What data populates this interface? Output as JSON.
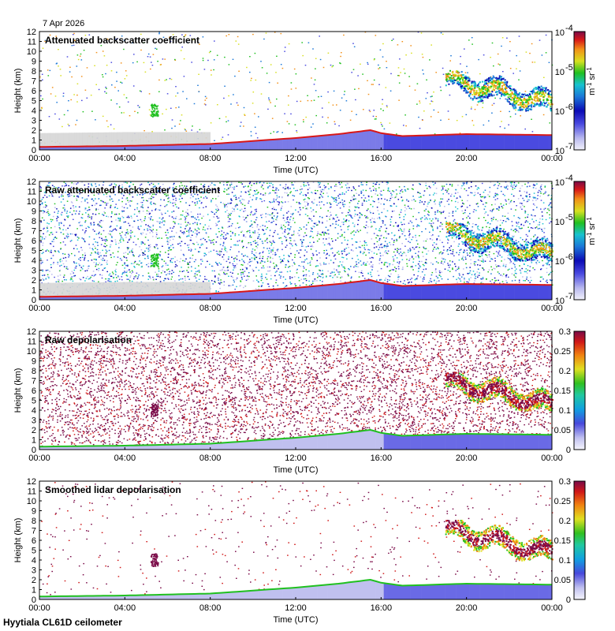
{
  "header": {
    "date": "7 Apr 2026"
  },
  "footer": {
    "site": "Hyytiala CL61D ceilometer"
  },
  "chart_data": [
    {
      "type": "heatmap",
      "title": "Attenuated backscatter coefficient",
      "xlabel": "Time (UTC)",
      "ylabel": "Height (km)",
      "xticks": [
        "00:00",
        "04:00",
        "08:00",
        "12:00",
        "16:00",
        "20:00",
        "00:00"
      ],
      "yticks": [
        "0",
        "1",
        "2",
        "3",
        "4",
        "5",
        "6",
        "7",
        "8",
        "9",
        "10",
        "11",
        "12"
      ],
      "ylim": [
        0,
        12
      ],
      "xlim_hours": [
        0,
        24
      ],
      "colorbar": {
        "scale": "log",
        "ticks": [
          {
            "base": "10",
            "exp": "-4"
          },
          {
            "base": "10",
            "exp": "-5"
          },
          {
            "base": "10",
            "exp": "-6"
          },
          {
            "base": "10",
            "exp": "-7"
          }
        ],
        "unit": {
          "m_exp": "-1",
          "sr_exp": "-1"
        },
        "colormap": "viridis-like rainbow"
      },
      "features": {
        "boundary_layer_top_km": [
          [
            0,
            0.3
          ],
          [
            4,
            0.4
          ],
          [
            6,
            0.5
          ],
          [
            8,
            0.6
          ],
          [
            10,
            0.9
          ],
          [
            12,
            1.2
          ],
          [
            14,
            1.6
          ],
          [
            15.5,
            2.0
          ],
          [
            16,
            1.7
          ],
          [
            17,
            1.4
          ],
          [
            20,
            1.6
          ],
          [
            24,
            1.5
          ]
        ],
        "upper_cloud": {
          "t_start_h": 19.0,
          "t_end_h": 24.0,
          "top_km": 7.8,
          "base_km": 4.0
        }
      }
    },
    {
      "type": "heatmap",
      "title": "Raw attenuated backscatter coefficient",
      "xlabel": "Time (UTC)",
      "ylabel": "Height (km)",
      "xticks": [
        "00:00",
        "04:00",
        "08:00",
        "12:00",
        "16:00",
        "20:00",
        "00:00"
      ],
      "yticks": [
        "0",
        "1",
        "2",
        "3",
        "4",
        "5",
        "6",
        "7",
        "8",
        "9",
        "10",
        "11",
        "12"
      ],
      "ylim": [
        0,
        12
      ],
      "xlim_hours": [
        0,
        24
      ],
      "colorbar": {
        "scale": "log",
        "ticks": [
          {
            "base": "10",
            "exp": "-4"
          },
          {
            "base": "10",
            "exp": "-5"
          },
          {
            "base": "10",
            "exp": "-6"
          },
          {
            "base": "10",
            "exp": "-7"
          }
        ],
        "unit": {
          "m_exp": "-1",
          "sr_exp": "-1"
        },
        "colormap": "viridis-like rainbow"
      },
      "features": {
        "noise": "dense",
        "upper_cloud": {
          "t_start_h": 19.0,
          "t_end_h": 24.0,
          "top_km": 7.6,
          "base_km": 4.0
        }
      }
    },
    {
      "type": "heatmap",
      "title": "Raw depolarisation",
      "xlabel": "Time (UTC)",
      "ylabel": "Height (km)",
      "xticks": [
        "00:00",
        "04:00",
        "08:00",
        "12:00",
        "16:00",
        "20:00",
        "00:00"
      ],
      "yticks": [
        "0",
        "1",
        "2",
        "3",
        "4",
        "5",
        "6",
        "7",
        "8",
        "9",
        "10",
        "11",
        "12"
      ],
      "ylim": [
        0,
        12
      ],
      "xlim_hours": [
        0,
        24
      ],
      "colorbar": {
        "scale": "linear",
        "range": [
          0,
          0.3
        ],
        "ticks": [
          "0.3",
          "0.25",
          "0.2",
          "0.15",
          "0.1",
          "0.05",
          "0"
        ]
      },
      "features": {
        "noise": "purple speckle",
        "upper_cloud": {
          "t_start_h": 19.0,
          "t_end_h": 24.0,
          "top_km": 7.6,
          "base_km": 4.0
        }
      }
    },
    {
      "type": "heatmap",
      "title": "Smoothed lidar depolarisation",
      "xlabel": "Time (UTC)",
      "ylabel": "Height (km)",
      "xticks": [
        "00:00",
        "04:00",
        "08:00",
        "12:00",
        "16:00",
        "20:00",
        "00:00"
      ],
      "yticks": [
        "0",
        "1",
        "2",
        "3",
        "4",
        "5",
        "6",
        "7",
        "8",
        "9",
        "10",
        "11",
        "12"
      ],
      "ylim": [
        0,
        12
      ],
      "xlim_hours": [
        0,
        24
      ],
      "colorbar": {
        "scale": "linear",
        "range": [
          0,
          0.3
        ],
        "ticks": [
          "0.3",
          "0.25",
          "0.2",
          "0.15",
          "0.1",
          "0.05",
          "0"
        ]
      },
      "features": {
        "noise": "sparse purple",
        "upper_cloud": {
          "t_start_h": 19.0,
          "t_end_h": 24.0,
          "top_km": 7.8,
          "base_km": 4.0
        }
      }
    }
  ]
}
